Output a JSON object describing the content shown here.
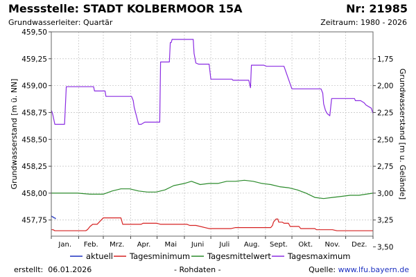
{
  "header": {
    "station": "Messstelle: STADT KOLBERMOOR 15A",
    "number": "Nr: 21985",
    "aquifer": "Grundwasserleiter: Quartär",
    "period": "Zeitraum: 1980 - 2026"
  },
  "footer": {
    "created_label": "erstellt:",
    "created_date": "06.01.2026",
    "raw_data": "- Rohdaten -",
    "source_label": "Quelle:",
    "source_link": "www.lfu.bayern.de"
  },
  "chart_data": {
    "type": "line",
    "title": "",
    "xlabel": "",
    "ylabel": "Grundwasserstand [m ü. NN]",
    "ylabel_right": "Grundwasserstand [m u. Gelände]",
    "ylim": [
      457.6,
      459.5
    ],
    "xlim": [
      1,
      366
    ],
    "grid": true,
    "legend_position": "bottom",
    "left_ticks": [
      {
        "value": 459.5,
        "label": "459,50"
      },
      {
        "value": 459.25,
        "label": "459,25"
      },
      {
        "value": 459.0,
        "label": "459,00"
      },
      {
        "value": 458.75,
        "label": "458,75"
      },
      {
        "value": 458.5,
        "label": "458,50"
      },
      {
        "value": 458.25,
        "label": "458,25"
      },
      {
        "value": 458.0,
        "label": "458,00"
      },
      {
        "value": 457.75,
        "label": "457,75"
      }
    ],
    "right_ticks": [
      {
        "value": 1.75,
        "label": "1,75"
      },
      {
        "value": 2.0,
        "label": "2,00"
      },
      {
        "value": 2.25,
        "label": "2,25"
      },
      {
        "value": 2.5,
        "label": "2,50"
      },
      {
        "value": 2.75,
        "label": "2,75"
      },
      {
        "value": 3.0,
        "label": "3,00"
      },
      {
        "value": 3.25,
        "label": "3,25"
      },
      {
        "value": 3.5,
        "label": "3,50"
      }
    ],
    "right_axis_reference_level": 461.0,
    "month_boundaries": [
      1,
      32,
      60,
      91,
      121,
      152,
      182,
      213,
      244,
      274,
      305,
      335,
      366
    ],
    "months": [
      "Jan.",
      "Feb.",
      "Mrz.",
      "Apr.",
      "Mai",
      "Juni",
      "Juli",
      "Aug.",
      "Sept.",
      "Okt.",
      "Nov.",
      "Dez."
    ],
    "series": [
      {
        "name": "aktuell",
        "color": "#1c30c0",
        "x": [
          1,
          2,
          3,
          4,
          5,
          6
        ],
        "y": [
          457.79,
          457.78,
          457.78,
          457.77,
          457.77,
          457.76
        ]
      },
      {
        "name": "Tagesminimum",
        "color": "#d62020",
        "x": [
          1,
          3,
          5,
          40,
          42,
          45,
          48,
          53,
          60,
          80,
          82,
          103,
          105,
          121,
          125,
          155,
          158,
          165,
          180,
          205,
          210,
          250,
          252,
          253,
          256,
          258,
          259,
          263,
          265,
          270,
          272,
          282,
          284,
          300,
          302,
          320,
          325,
          366
        ],
        "y": [
          457.66,
          457.66,
          457.65,
          457.65,
          457.66,
          457.69,
          457.71,
          457.71,
          457.77,
          457.77,
          457.71,
          457.71,
          457.72,
          457.72,
          457.71,
          457.71,
          457.7,
          457.7,
          457.67,
          457.67,
          457.68,
          457.68,
          457.7,
          457.73,
          457.76,
          457.76,
          457.73,
          457.73,
          457.72,
          457.72,
          457.69,
          457.69,
          457.67,
          457.67,
          457.66,
          457.66,
          457.65,
          457.65
        ]
      },
      {
        "name": "Tagesmittelwert",
        "color": "#2a8a2a",
        "x": [
          1,
          15,
          31,
          45,
          60,
          70,
          80,
          90,
          100,
          110,
          120,
          130,
          140,
          152,
          160,
          170,
          180,
          190,
          200,
          210,
          220,
          230,
          240,
          250,
          260,
          270,
          280,
          290,
          300,
          310,
          320,
          330,
          340,
          350,
          366
        ],
        "y": [
          458.0,
          458.0,
          458.0,
          457.99,
          457.99,
          458.02,
          458.04,
          458.04,
          458.02,
          458.01,
          458.01,
          458.03,
          458.07,
          458.09,
          458.11,
          458.08,
          458.09,
          458.09,
          458.11,
          458.11,
          458.12,
          458.11,
          458.09,
          458.08,
          458.06,
          458.05,
          458.03,
          458.0,
          457.96,
          457.95,
          457.96,
          457.97,
          457.98,
          457.98,
          458.0
        ]
      },
      {
        "name": "Tagesmaximum",
        "color": "#8a2be2",
        "x": [
          1,
          2,
          3,
          5,
          16,
          18,
          49,
          50,
          62,
          63,
          92,
          94,
          95,
          100,
          103,
          107,
          124,
          125,
          135,
          136,
          137,
          138,
          140,
          162,
          163,
          165,
          168,
          172,
          180,
          182,
          206,
          207,
          220,
          225,
          227,
          228,
          242,
          245,
          265,
          274,
          276,
          288,
          307,
          309,
          310,
          312,
          314,
          317,
          319,
          332,
          345,
          346,
          348,
          352,
          356,
          358,
          364,
          366
        ],
        "y": [
          458.77,
          458.75,
          458.72,
          458.64,
          458.64,
          458.99,
          458.99,
          458.95,
          458.95,
          458.9,
          458.9,
          458.86,
          458.8,
          458.64,
          458.64,
          458.66,
          458.66,
          459.22,
          459.22,
          459.4,
          459.4,
          459.43,
          459.43,
          459.43,
          459.3,
          459.21,
          459.2,
          459.2,
          459.2,
          459.06,
          459.06,
          459.05,
          459.05,
          459.05,
          458.98,
          459.19,
          459.19,
          459.18,
          459.18,
          458.97,
          458.97,
          458.97,
          458.97,
          458.93,
          458.83,
          458.77,
          458.74,
          458.72,
          458.88,
          458.88,
          458.88,
          458.86,
          458.86,
          458.86,
          458.84,
          458.82,
          458.79,
          458.74
        ]
      }
    ]
  }
}
